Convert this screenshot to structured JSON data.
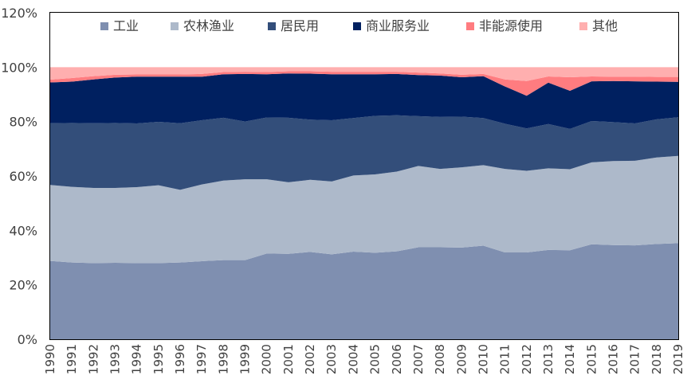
{
  "chart_data": {
    "type": "area",
    "stacked": true,
    "title": "",
    "xlabel": "",
    "ylabel": "",
    "ylim": [
      0,
      120
    ],
    "y_ticks": [
      "0%",
      "20%",
      "40%",
      "60%",
      "80%",
      "100%",
      "120%"
    ],
    "y_tick_values": [
      0,
      20,
      40,
      60,
      80,
      100,
      120
    ],
    "legend_position": "top",
    "categories": [
      "1990",
      "1991",
      "1992",
      "1993",
      "1994",
      "1995",
      "1996",
      "1997",
      "1998",
      "1999",
      "2000",
      "2001",
      "2002",
      "2003",
      "2004",
      "2005",
      "2006",
      "2007",
      "2008",
      "2009",
      "2010",
      "2011",
      "2012",
      "2013",
      "2014",
      "2015",
      "2016",
      "2017",
      "2018",
      "2019"
    ],
    "series": [
      {
        "name": "工业",
        "color": "#7F8FB0",
        "values": [
          28.8,
          28.2,
          28.0,
          28.1,
          28.0,
          28.0,
          28.2,
          28.7,
          29.1,
          29.1,
          31.5,
          31.4,
          32.1,
          31.2,
          32.2,
          31.8,
          32.3,
          33.8,
          33.8,
          33.7,
          34.4,
          31.9,
          31.9,
          32.8,
          32.7,
          34.9,
          34.6,
          34.5,
          35.0,
          35.3
        ]
      },
      {
        "name": "农林渔业",
        "color": "#ADB9CA",
        "values": [
          27.9,
          27.8,
          27.6,
          27.5,
          27.9,
          28.6,
          26.7,
          28.2,
          29.2,
          29.7,
          27.3,
          26.3,
          26.5,
          26.8,
          28.0,
          28.8,
          29.3,
          29.9,
          28.8,
          29.5,
          29.6,
          30.7,
          30.0,
          30.0,
          29.8,
          30.1,
          30.9,
          31.1,
          31.8,
          32.1
        ]
      },
      {
        "name": "居民用",
        "color": "#334E7A",
        "values": [
          22.7,
          23.5,
          23.8,
          23.9,
          23.4,
          23.3,
          24.5,
          23.6,
          23.1,
          21.2,
          22.7,
          23.7,
          22.1,
          22.5,
          21.1,
          21.5,
          20.7,
          18.3,
          19.1,
          18.6,
          17.3,
          16.6,
          15.6,
          16.3,
          14.8,
          15.2,
          14.3,
          13.7,
          14.0,
          14.2
        ]
      },
      {
        "name": "商业服务业",
        "color": "#002060",
        "values": [
          15.0,
          15.2,
          16.1,
          16.7,
          17.2,
          16.6,
          17.1,
          16.0,
          16.0,
          17.5,
          15.9,
          16.3,
          16.9,
          16.9,
          16.1,
          15.3,
          15.2,
          15.1,
          15.2,
          14.5,
          15.4,
          13.7,
          12.0,
          15.2,
          14.0,
          14.6,
          15.1,
          15.5,
          13.9,
          13.0
        ]
      },
      {
        "name": "非能源使用",
        "color": "#FF7C80",
        "values": [
          1.0,
          1.3,
          1.2,
          1.0,
          0.8,
          0.8,
          0.8,
          1.0,
          0.8,
          0.8,
          0.8,
          0.8,
          0.9,
          0.9,
          0.9,
          0.9,
          0.8,
          0.9,
          0.8,
          0.9,
          0.8,
          2.6,
          5.4,
          2.3,
          5.0,
          1.8,
          1.6,
          1.7,
          1.7,
          1.8
        ]
      },
      {
        "name": "其他",
        "color": "#FFAFAF",
        "values": [
          4.6,
          4.0,
          3.3,
          2.8,
          2.7,
          2.7,
          2.7,
          2.5,
          1.8,
          1.7,
          1.8,
          1.5,
          1.5,
          1.7,
          1.7,
          1.7,
          1.7,
          2.0,
          2.3,
          2.8,
          2.5,
          4.5,
          5.1,
          3.4,
          3.7,
          3.4,
          3.5,
          3.5,
          3.6,
          3.6
        ]
      }
    ]
  }
}
